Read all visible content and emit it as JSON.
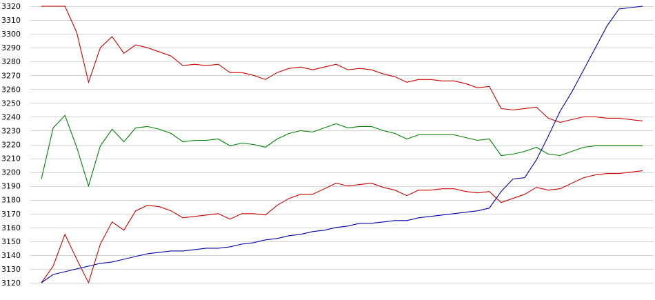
{
  "chart_data": {
    "type": "line",
    "title": "",
    "xlabel": "",
    "ylabel": "",
    "ylim": [
      3120,
      3320
    ],
    "yticks": [
      3120,
      3130,
      3140,
      3150,
      3160,
      3170,
      3180,
      3190,
      3200,
      3210,
      3220,
      3230,
      3240,
      3250,
      3260,
      3270,
      3280,
      3290,
      3300,
      3310,
      3320
    ],
    "grid": true,
    "x": [
      0,
      1,
      2,
      3,
      4,
      5,
      6,
      7,
      8,
      9,
      10,
      11,
      12,
      13,
      14,
      15,
      16,
      17,
      18,
      19,
      20,
      21,
      22,
      23,
      24,
      25,
      26,
      27,
      28,
      29,
      30,
      31,
      32,
      33,
      34,
      35,
      36,
      37,
      38,
      39,
      40,
      41,
      42,
      43,
      44,
      45,
      46,
      47,
      48,
      49,
      50,
      51
    ],
    "series": [
      {
        "color": "#cc0000",
        "values": [
          3320,
          3320,
          3320,
          3301,
          3265,
          3290,
          3298,
          3286,
          3292,
          3290,
          3287,
          3284,
          3277,
          3278,
          3277,
          3278,
          3272,
          3272,
          3270,
          3267,
          3272,
          3275,
          3276,
          3274,
          3276,
          3278,
          3274,
          3275,
          3274,
          3271,
          3269,
          3265,
          3267,
          3267,
          3266,
          3266,
          3264,
          3261,
          3262,
          3246,
          3245,
          3246,
          3247,
          3239,
          3236,
          3238,
          3240,
          3240,
          3239,
          3239,
          3238,
          3237
        ]
      },
      {
        "color": "#008000",
        "values": [
          3195,
          3232,
          3241,
          3218,
          3190,
          3219,
          3231,
          3222,
          3232,
          3233,
          3231,
          3228,
          3222,
          3223,
          3223,
          3224,
          3219,
          3221,
          3220,
          3218,
          3224,
          3228,
          3230,
          3229,
          3232,
          3235,
          3232,
          3233,
          3233,
          3230,
          3228,
          3224,
          3227,
          3227,
          3227,
          3227,
          3225,
          3223,
          3224,
          3212,
          3213,
          3215,
          3218,
          3213,
          3212,
          3215,
          3218,
          3219,
          3219,
          3219,
          3219,
          3219
        ]
      },
      {
        "color": "#cc0000",
        "values": [
          3120,
          3132,
          3155,
          3137,
          3120,
          3148,
          3164,
          3158,
          3172,
          3176,
          3175,
          3172,
          3167,
          3168,
          3169,
          3170,
          3166,
          3170,
          3170,
          3169,
          3176,
          3181,
          3184,
          3184,
          3188,
          3192,
          3190,
          3191,
          3192,
          3189,
          3187,
          3183,
          3187,
          3187,
          3188,
          3188,
          3186,
          3185,
          3186,
          3178,
          3181,
          3184,
          3189,
          3187,
          3188,
          3192,
          3196,
          3198,
          3199,
          3199,
          3200,
          3201
        ]
      },
      {
        "color": "#0000aa",
        "values": [
          3120,
          3126,
          3128,
          3130,
          3132,
          3134,
          3135,
          3137,
          3139,
          3141,
          3142,
          3143,
          3143,
          3144,
          3145,
          3145,
          3146,
          3148,
          3149,
          3151,
          3152,
          3154,
          3155,
          3157,
          3158,
          3160,
          3161,
          3163,
          3163,
          3164,
          3165,
          3165,
          3167,
          3168,
          3169,
          3170,
          3171,
          3172,
          3174,
          3186,
          3195,
          3196,
          3209,
          3226,
          3244,
          3258,
          3274,
          3290,
          3306,
          3318,
          3319,
          3320
        ]
      }
    ]
  }
}
